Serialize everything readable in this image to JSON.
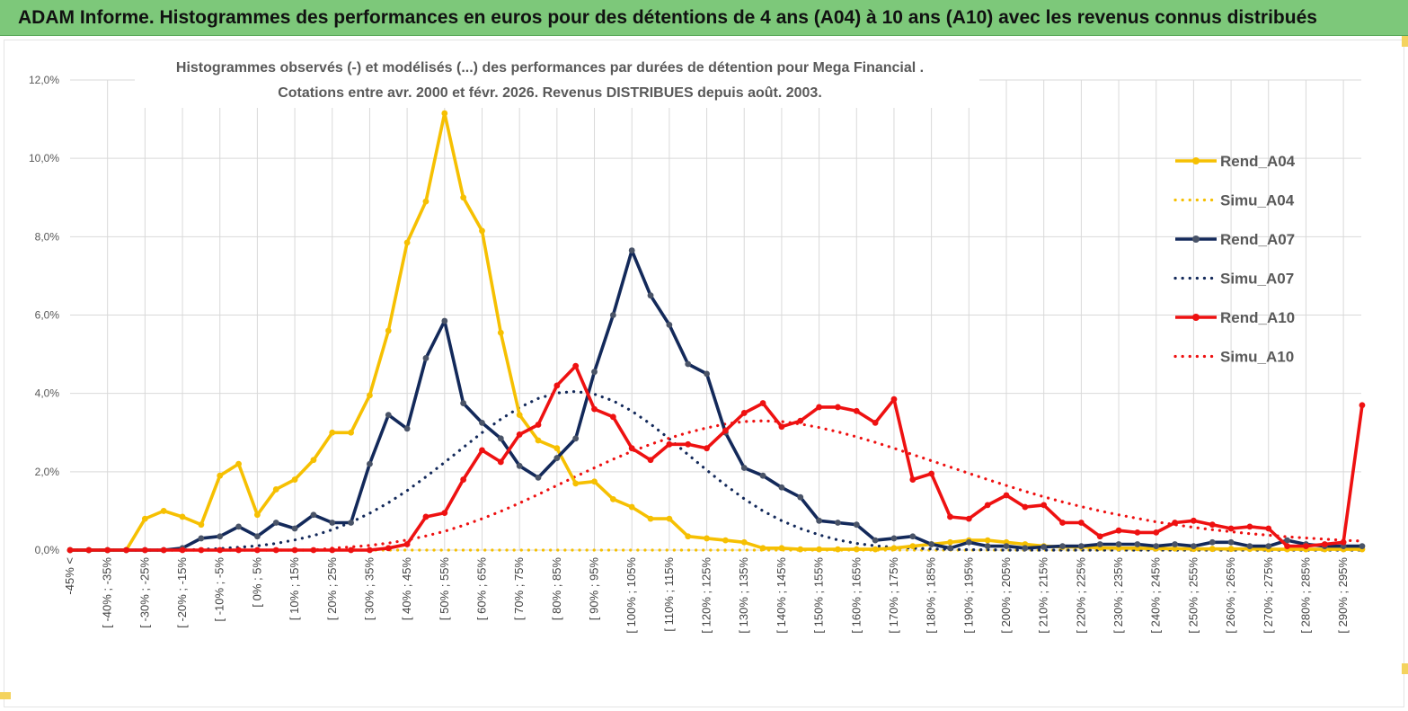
{
  "header": {
    "title": "ADAM Informe. Histogrammes des performances en euros pour des détentions de 4 ans (A04) à 10 ans (A10) avec les revenus connus distribués"
  },
  "colors": {
    "banner": "#7dc87a",
    "a04": "#f6c002",
    "a07": "#13295a",
    "a10": "#ee1111",
    "grid": "#d9d9d9"
  },
  "chart_data": {
    "type": "line",
    "title_line1": "Histogrammes observés (-) et modélisés (...) des performances par durées de détention pour Mega Financial .",
    "title_line2": "Cotations entre avr. 2000 et févr.  2026. Revenus DISTRIBUES depuis août. 2003.",
    "ylim": [
      0,
      12
    ],
    "y_ticks": [
      "0,0%",
      "2,0%",
      "4,0%",
      "6,0%",
      "8,0%",
      "10,0%",
      "12,0%"
    ],
    "x_tick_labels": [
      "-45% <",
      "[ -40% ; -35%",
      "[ -30% ; -25%",
      "[ -20% ; -15%",
      "[ -10% ; -5%",
      "[ 0% ; 5%",
      "[ 10% ; 15%",
      "[ 20% ; 25%",
      "[ 30% ; 35%",
      "[ 40% ; 45%",
      "[ 50% ; 55%",
      "[ 60% ; 65%",
      "[ 70% ; 75%",
      "[ 80% ; 85%",
      "[ 90% ; 95%",
      "[ 100% ; 105%",
      "[ 110% ; 115%",
      "[ 120% ; 125%",
      "[ 130% ; 135%",
      "[ 140% ; 145%",
      "[ 150% ; 155%",
      "[ 160% ; 165%",
      "[ 170% ; 175%",
      "[ 180% ; 185%",
      "[ 190% ; 195%",
      "[ 200% ; 205%",
      "[ 210% ; 215%",
      "[ 220% ; 225%",
      "[ 230% ; 235%",
      "[ 240% ; 245%",
      "[ 250% ; 255%",
      "[ 260% ; 265%",
      "[ 270% ; 275%",
      "[ 280% ; 285%",
      "[ 290% ; 295%"
    ],
    "n_points": 70,
    "series": [
      {
        "name": "Rend_A04",
        "style": "solid",
        "color": "#f6c002",
        "values": [
          0,
          0,
          0,
          0,
          0.8,
          1.0,
          0.85,
          0.65,
          1.9,
          2.2,
          0.9,
          1.55,
          1.8,
          2.3,
          3.0,
          3.0,
          3.95,
          5.6,
          7.85,
          8.9,
          11.15,
          9.0,
          8.15,
          5.55,
          3.45,
          2.8,
          2.6,
          1.7,
          1.75,
          1.3,
          1.1,
          0.8,
          0.8,
          0.35,
          0.3,
          0.25,
          0.2,
          0.05,
          0.05,
          0.02,
          0.02,
          0.02,
          0.02,
          0.02,
          0.05,
          0.1,
          0.15,
          0.2,
          0.25,
          0.25,
          0.2,
          0.15,
          0.1,
          0.08,
          0.08,
          0.06,
          0.05,
          0.05,
          0.04,
          0.04,
          0.03,
          0.03,
          0.03,
          0.03,
          0.02,
          0.02,
          0.02,
          0.02,
          0.02,
          0.02
        ]
      },
      {
        "name": "Simu_A04",
        "style": "dotted",
        "color": "#f6c002",
        "values": [
          0,
          0,
          0,
          0,
          0,
          0,
          0,
          0,
          0,
          0,
          0,
          0,
          0,
          0,
          0,
          0,
          0,
          0,
          0,
          0,
          0,
          0,
          0,
          0,
          0,
          0,
          0,
          0,
          0,
          0,
          0,
          0,
          0,
          0,
          0,
          0,
          0,
          0,
          0,
          0,
          0,
          0,
          0,
          0,
          0,
          0,
          0,
          0,
          0,
          0,
          0,
          0,
          0,
          0,
          0,
          0,
          0,
          0,
          0,
          0,
          0,
          0,
          0,
          0,
          0,
          0,
          0,
          0,
          0,
          0
        ]
      },
      {
        "name": "Rend_A07",
        "style": "solid",
        "color": "#13295a",
        "values": [
          0,
          0,
          0,
          0,
          0,
          0,
          0.05,
          0.3,
          0.35,
          0.6,
          0.35,
          0.7,
          0.55,
          0.9,
          0.7,
          0.7,
          2.2,
          3.45,
          3.1,
          4.9,
          5.85,
          3.75,
          3.25,
          2.85,
          2.15,
          1.85,
          2.35,
          2.85,
          4.55,
          6.0,
          7.65,
          6.5,
          5.75,
          4.75,
          4.5,
          3.0,
          2.1,
          1.9,
          1.6,
          1.35,
          0.75,
          0.7,
          0.65,
          0.25,
          0.3,
          0.35,
          0.15,
          0.05,
          0.2,
          0.1,
          0.1,
          0.05,
          0.08,
          0.1,
          0.1,
          0.15,
          0.15,
          0.15,
          0.1,
          0.15,
          0.1,
          0.2,
          0.2,
          0.1,
          0.1,
          0.25,
          0.15,
          0.1,
          0.1,
          0.1
        ]
      },
      {
        "name": "Simu_A07",
        "style": "dotted",
        "color": "#13295a",
        "values": [
          0,
          0,
          0,
          0,
          0,
          0,
          0,
          0.02,
          0.04,
          0.07,
          0.11,
          0.17,
          0.26,
          0.37,
          0.52,
          0.71,
          0.94,
          1.21,
          1.52,
          1.87,
          2.24,
          2.62,
          3.0,
          3.34,
          3.64,
          3.87,
          4.01,
          4.05,
          3.98,
          3.81,
          3.55,
          3.22,
          2.84,
          2.44,
          2.04,
          1.66,
          1.31,
          1.0,
          0.75,
          0.55,
          0.39,
          0.26,
          0.17,
          0.11,
          0.07,
          0.05,
          0.03,
          0.02,
          0.01,
          0.01,
          0,
          0,
          0,
          0,
          0,
          0,
          0,
          0,
          0,
          0,
          0,
          0,
          0,
          0,
          0,
          0,
          0,
          0,
          0,
          0
        ]
      },
      {
        "name": "Rend_A10",
        "style": "solid",
        "color": "#ee1111",
        "values": [
          0,
          0,
          0,
          0,
          0,
          0,
          0,
          0,
          0,
          0,
          0,
          0,
          0,
          0,
          0,
          0,
          0,
          0.05,
          0.15,
          0.85,
          0.95,
          1.8,
          2.55,
          2.25,
          2.95,
          3.2,
          4.2,
          4.7,
          3.6,
          3.4,
          2.6,
          2.3,
          2.7,
          2.7,
          2.6,
          3.05,
          3.5,
          3.75,
          3.15,
          3.3,
          3.65,
          3.65,
          3.55,
          3.25,
          3.85,
          1.8,
          1.95,
          0.85,
          0.8,
          1.15,
          1.4,
          1.1,
          1.15,
          0.7,
          0.7,
          0.35,
          0.5,
          0.45,
          0.45,
          0.7,
          0.75,
          0.65,
          0.55,
          0.6,
          0.55,
          0.1,
          0.1,
          0.15,
          0.2,
          3.7
        ]
      },
      {
        "name": "Simu_A10",
        "style": "dotted",
        "color": "#ee1111",
        "values": [
          0,
          0,
          0,
          0,
          0,
          0,
          0,
          0,
          0,
          0,
          0,
          0,
          0,
          0,
          0.05,
          0.08,
          0.12,
          0.18,
          0.26,
          0.36,
          0.48,
          0.63,
          0.8,
          0.99,
          1.2,
          1.42,
          1.65,
          1.88,
          2.1,
          2.32,
          2.52,
          2.7,
          2.86,
          3.0,
          3.12,
          3.22,
          3.28,
          3.3,
          3.28,
          3.22,
          3.13,
          3.02,
          2.89,
          2.75,
          2.6,
          2.44,
          2.28,
          2.12,
          1.96,
          1.8,
          1.65,
          1.5,
          1.36,
          1.23,
          1.11,
          1.0,
          0.9,
          0.81,
          0.72,
          0.65,
          0.58,
          0.52,
          0.47,
          0.42,
          0.38,
          0.34,
          0.31,
          0.28,
          0.25,
          0.23
        ]
      }
    ],
    "legend": [
      "Rend_A04",
      "Simu_A04",
      "Rend_A07",
      "Simu_A07",
      "Rend_A10",
      "Simu_A10"
    ],
    "legend_position": "right"
  }
}
